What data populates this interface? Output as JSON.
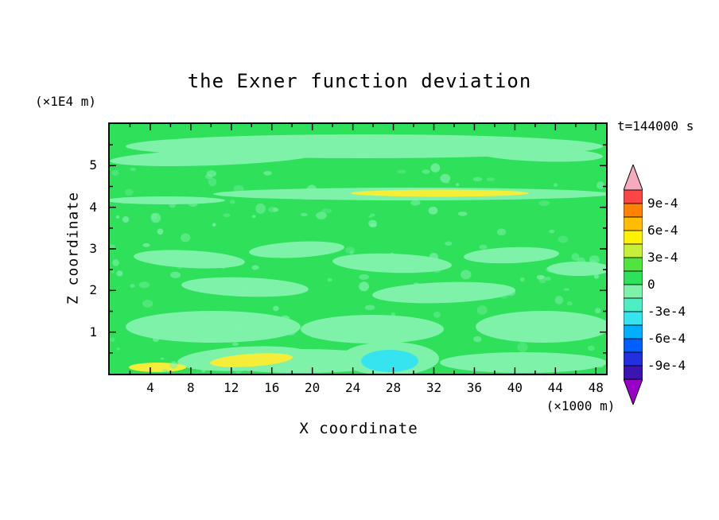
{
  "title": "the Exner function deviation",
  "time_label": "t=144000 s",
  "x_axis": {
    "label": "X coordinate",
    "unit": "(×1000 m)",
    "ticks": [
      4,
      8,
      12,
      16,
      20,
      24,
      28,
      32,
      36,
      40,
      44,
      48
    ],
    "range": [
      0,
      49
    ],
    "minor_step": 2
  },
  "y_axis": {
    "label": "Z coordinate",
    "unit": "(×1E4 m)",
    "ticks": [
      1,
      2,
      3,
      4,
      5
    ],
    "range": [
      0,
      6
    ],
    "minor_step": 0.5
  },
  "colorbar": {
    "labels": [
      "9e-4",
      "6e-4",
      "3e-4",
      "0",
      "-3e-4",
      "-6e-4",
      "-9e-4"
    ],
    "segments": [
      "#fb4646",
      "#ff8200",
      "#ffbc00",
      "#fff200",
      "#c8ee3c",
      "#50e43c",
      "#2ee05a",
      "#7ff2aa",
      "#4eeec4",
      "#35e4ee",
      "#00b0ff",
      "#0060ff",
      "#2230dd",
      "#3c14b4"
    ],
    "top_arrow": "#f5aabe",
    "bottom_arrow": "#9b00c8"
  },
  "chart_data": {
    "type": "heatmap",
    "title": "the Exner function deviation",
    "time": "t=144000 s",
    "x_range_x1000m": [
      0,
      49
    ],
    "z_range_x1E4m": [
      0,
      6
    ],
    "contour_levels": [
      -0.0009,
      -0.0006,
      -0.0003,
      0,
      0.0003,
      0.0006,
      0.0009
    ],
    "base_color": "#2ee05a",
    "palette": {
      "light": "#7ff2aa",
      "yellow": "#f4ee38",
      "cyan": "#35e4ee"
    },
    "features": [
      {
        "shape": "ellipse",
        "color": "light",
        "cx": 320,
        "cy": 28,
        "rx": 300,
        "ry": 15,
        "rot": 0
      },
      {
        "shape": "ellipse",
        "color": "light",
        "cx": 130,
        "cy": 42,
        "rx": 130,
        "ry": 10,
        "rot": -2
      },
      {
        "shape": "ellipse",
        "color": "light",
        "cx": 540,
        "cy": 38,
        "rx": 80,
        "ry": 9,
        "rot": 2
      },
      {
        "shape": "ellipse",
        "color": "light",
        "cx": 380,
        "cy": 88,
        "rx": 250,
        "ry": 8,
        "rot": 0
      },
      {
        "shape": "ellipse",
        "color": "light",
        "cx": 70,
        "cy": 96,
        "rx": 75,
        "ry": 5,
        "rot": 0
      },
      {
        "shape": "ellipse",
        "color": "yellow",
        "cx": 415,
        "cy": 87,
        "rx": 112,
        "ry": 4.5,
        "rot": 0
      },
      {
        "shape": "ellipse",
        "color": "light",
        "cx": 100,
        "cy": 170,
        "rx": 70,
        "ry": 11,
        "rot": 3
      },
      {
        "shape": "ellipse",
        "color": "light",
        "cx": 235,
        "cy": 158,
        "rx": 60,
        "ry": 10,
        "rot": -3
      },
      {
        "shape": "ellipse",
        "color": "light",
        "cx": 355,
        "cy": 175,
        "rx": 75,
        "ry": 12,
        "rot": 2
      },
      {
        "shape": "ellipse",
        "color": "light",
        "cx": 505,
        "cy": 165,
        "rx": 60,
        "ry": 10,
        "rot": -2
      },
      {
        "shape": "ellipse",
        "color": "light",
        "cx": 590,
        "cy": 182,
        "rx": 40,
        "ry": 9,
        "rot": 0
      },
      {
        "shape": "ellipse",
        "color": "light",
        "cx": 170,
        "cy": 205,
        "rx": 80,
        "ry": 12,
        "rot": 2
      },
      {
        "shape": "ellipse",
        "color": "light",
        "cx": 420,
        "cy": 212,
        "rx": 90,
        "ry": 13,
        "rot": -2
      },
      {
        "shape": "ellipse",
        "color": "light",
        "cx": 130,
        "cy": 255,
        "rx": 110,
        "ry": 20,
        "rot": 0
      },
      {
        "shape": "ellipse",
        "color": "light",
        "cx": 330,
        "cy": 258,
        "rx": 90,
        "ry": 18,
        "rot": 0
      },
      {
        "shape": "ellipse",
        "color": "light",
        "cx": 545,
        "cy": 255,
        "rx": 85,
        "ry": 20,
        "rot": 0
      },
      {
        "shape": "ellipse",
        "color": "light",
        "cx": 240,
        "cy": 298,
        "rx": 120,
        "ry": 15,
        "rot": 0
      },
      {
        "shape": "ellipse",
        "color": "light",
        "cx": 520,
        "cy": 300,
        "rx": 105,
        "ry": 13,
        "rot": 0
      },
      {
        "shape": "ellipse",
        "color": "light",
        "cx": 170,
        "cy": 295,
        "rx": 85,
        "ry": 15,
        "rot": -3
      },
      {
        "shape": "ellipse",
        "color": "yellow",
        "cx": 178,
        "cy": 297,
        "rx": 52,
        "ry": 8,
        "rot": -4
      },
      {
        "shape": "ellipse",
        "color": "yellow",
        "cx": 60,
        "cy": 306,
        "rx": 36,
        "ry": 6,
        "rot": 0
      },
      {
        "shape": "ellipse",
        "color": "light",
        "cx": 352,
        "cy": 295,
        "rx": 62,
        "ry": 21,
        "rot": 0
      },
      {
        "shape": "ellipse",
        "color": "cyan",
        "cx": 352,
        "cy": 298,
        "rx": 36,
        "ry": 14,
        "rot": 0
      }
    ],
    "speckle": {
      "seed": 20,
      "count": 150,
      "x_range": [
        0,
        624
      ],
      "y_range": [
        55,
        314
      ],
      "color": "light",
      "min_r": 2,
      "max_r": 7,
      "min_opacity": 0.3,
      "max_opacity": 0.75
    }
  }
}
